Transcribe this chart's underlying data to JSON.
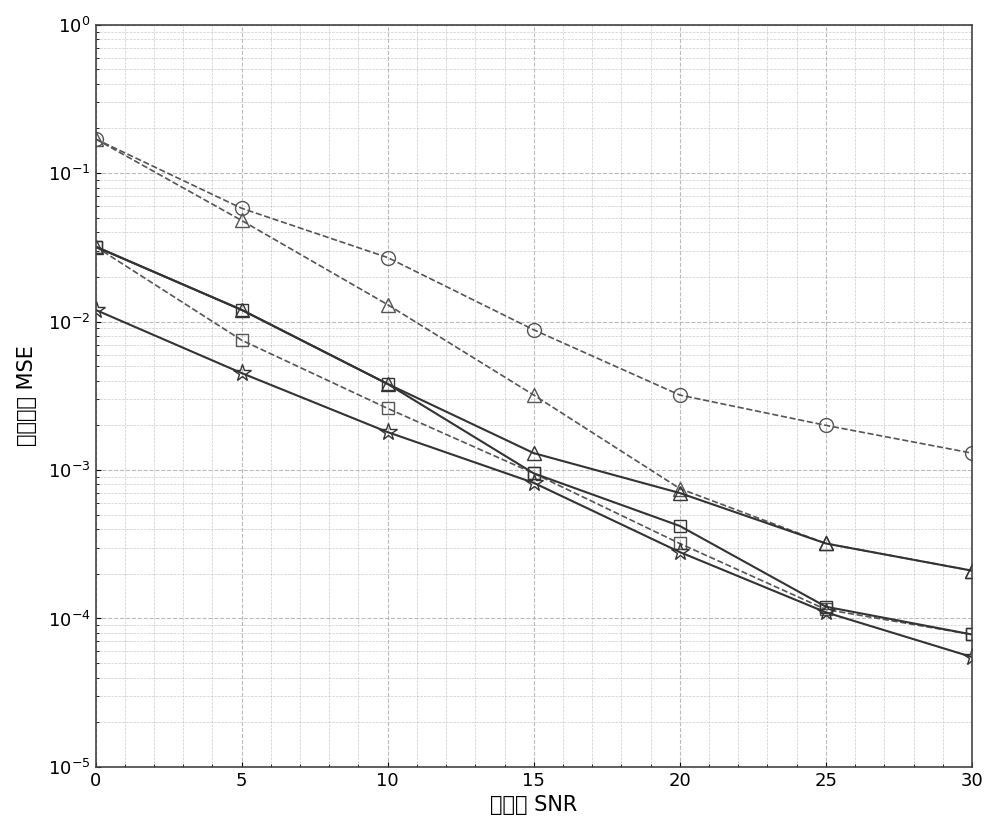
{
  "snr": [
    0,
    5,
    10,
    15,
    20,
    25,
    30
  ],
  "series": [
    {
      "name": "circle_dashed",
      "marker": "o",
      "linestyle": "--",
      "color": "#555555",
      "markersize": 10,
      "linewidth": 1.2,
      "markerfacecolor": "none",
      "values": [
        0.17,
        0.058,
        0.027,
        0.0088,
        0.0032,
        0.002,
        0.0013
      ]
    },
    {
      "name": "triangle_dashed",
      "marker": "^",
      "linestyle": "--",
      "color": "#555555",
      "markersize": 10,
      "linewidth": 1.2,
      "markerfacecolor": "none",
      "values": [
        0.17,
        0.048,
        0.013,
        0.0032,
        0.00075,
        0.00032,
        0.00021
      ]
    },
    {
      "name": "square_dashed",
      "marker": "s",
      "linestyle": "--",
      "color": "#555555",
      "markersize": 9,
      "linewidth": 1.2,
      "markerfacecolor": "none",
      "values": [
        0.032,
        0.0075,
        0.0026,
        0.00095,
        0.00032,
        0.000115,
        7.8e-05
      ]
    },
    {
      "name": "star_solid",
      "marker": "*",
      "linestyle": "-",
      "color": "#333333",
      "markersize": 13,
      "linewidth": 1.5,
      "markerfacecolor": "none",
      "values": [
        0.012,
        0.0045,
        0.0018,
        0.00082,
        0.00028,
        0.00011,
        5.5e-05
      ]
    },
    {
      "name": "square_solid",
      "marker": "s",
      "linestyle": "-",
      "color": "#333333",
      "markersize": 9,
      "linewidth": 1.5,
      "markerfacecolor": "none",
      "values": [
        0.032,
        0.012,
        0.0038,
        0.00095,
        0.00042,
        0.00012,
        7.8e-05
      ]
    },
    {
      "name": "triangle_solid",
      "marker": "^",
      "linestyle": "-",
      "color": "#333333",
      "markersize": 10,
      "linewidth": 1.5,
      "markerfacecolor": "none",
      "values": [
        0.032,
        0.012,
        0.0038,
        0.0013,
        0.0007,
        0.00032,
        0.00021
      ]
    }
  ],
  "xlabel": "信噪比 SNR",
  "ylabel": "估计误差 MSE",
  "xlim": [
    0,
    30
  ],
  "ylim_min": 1e-05,
  "ylim_max": 1.0,
  "xticks": [
    0,
    5,
    10,
    15,
    20,
    25,
    30
  ],
  "background_color": "#ffffff",
  "grid_color": "#aaaaaa",
  "figsize": [
    10.0,
    8.32
  ],
  "dpi": 100
}
